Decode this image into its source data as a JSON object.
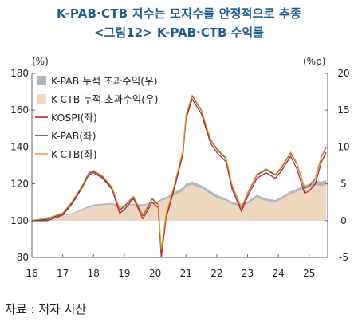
{
  "header": {
    "title_line1": "K-PAB·CTB 지수는 모지수를 안정적으로 추종",
    "title_line2": "<그림12> K-PAB·CTB 수익률"
  },
  "footer": {
    "source": "자료 : 저자 시산"
  },
  "colors": {
    "title": "#1f5f8c",
    "pab_excess": "#aeb3bd",
    "ctb_excess": "#f0d8c0",
    "kospi": "#c0202a",
    "pab": "#2f4a6e",
    "ctb": "#e2a530"
  },
  "chart_data": {
    "type": "line",
    "left_unit": "(%)",
    "right_unit": "(%p)",
    "x_tick_labels": [
      "16",
      "17",
      "18",
      "19",
      "20",
      "21",
      "22",
      "23",
      "24",
      "25"
    ],
    "y_left_ticks": [
      80,
      100,
      120,
      140,
      160,
      180
    ],
    "y_right_ticks": [
      -5,
      0,
      5,
      10,
      15,
      20
    ],
    "ylim_left": [
      80,
      180
    ],
    "ylim_right": [
      -5,
      20
    ],
    "xlim": [
      2016.0,
      2025.6
    ],
    "grid": false,
    "legend_position": "top-left",
    "legend": [
      {
        "label": "K-PAB 누적 초과수익(우)",
        "kind": "area",
        "color": "#aeb3bd"
      },
      {
        "label": "K-CTB 누적 초과수익(우)",
        "kind": "area",
        "color": "#f0d8c0"
      },
      {
        "label": "KOSPI(좌)",
        "kind": "line",
        "color": "#c0202a"
      },
      {
        "label": "K-PAB(좌)",
        "kind": "line",
        "color": "#2f4a6e"
      },
      {
        "label": "K-CTB(좌)",
        "kind": "line",
        "color": "#e2a530"
      }
    ],
    "x": [
      2016.0,
      2016.5,
      2017.0,
      2017.3,
      2017.6,
      2017.85,
      2018.0,
      2018.3,
      2018.6,
      2018.85,
      2019.0,
      2019.3,
      2019.6,
      2019.9,
      2020.1,
      2020.2,
      2020.35,
      2020.6,
      2020.9,
      2021.0,
      2021.2,
      2021.5,
      2021.8,
      2022.0,
      2022.3,
      2022.5,
      2022.8,
      2023.0,
      2023.3,
      2023.6,
      2023.9,
      2024.1,
      2024.4,
      2024.6,
      2024.85,
      2025.0,
      2025.2,
      2025.4,
      2025.55
    ],
    "series": [
      {
        "name": "KOSPI(좌)",
        "axis": "left",
        "values": [
          100,
          100,
          103,
          109,
          117,
          125,
          126,
          123,
          117,
          104,
          106,
          112,
          101,
          110,
          107,
          80,
          101,
          116,
          136,
          155,
          166,
          158,
          142,
          137,
          132,
          117,
          105,
          113,
          123,
          126,
          123,
          127,
          135,
          128,
          115,
          116,
          120,
          132,
          137
        ]
      },
      {
        "name": "K-PAB(좌)",
        "axis": "left",
        "values": [
          100,
          101,
          104,
          110,
          118,
          126,
          127,
          124,
          118,
          106,
          108,
          113,
          103,
          112,
          109,
          84,
          103,
          118,
          138,
          157,
          168,
          160,
          144,
          139,
          134,
          119,
          107,
          115,
          125,
          128,
          125,
          129,
          137,
          131,
          118,
          119,
          123,
          135,
          140
        ]
      },
      {
        "name": "K-CTB(좌)",
        "axis": "left",
        "values": [
          100,
          101,
          104,
          110,
          118,
          126,
          127,
          124,
          118,
          106,
          108,
          113,
          103,
          112,
          109,
          84,
          103,
          118,
          138,
          157,
          168,
          160,
          144,
          139,
          134,
          119,
          107,
          115,
          125,
          128,
          125,
          129,
          137,
          131,
          118,
          119,
          123,
          135,
          140
        ]
      },
      {
        "name": "K-PAB 누적 초과수익(우)",
        "axis": "right",
        "values": [
          0,
          0.5,
          0.8,
          1.0,
          1.5,
          2.0,
          2.2,
          2.3,
          2.4,
          2.0,
          2.1,
          2.3,
          2.2,
          2.5,
          2.6,
          3.0,
          3.2,
          3.8,
          4.5,
          5.0,
          5.3,
          4.8,
          4.0,
          3.5,
          3.0,
          2.5,
          2.3,
          2.6,
          3.5,
          3.0,
          2.8,
          3.2,
          4.0,
          4.3,
          4.8,
          5.0,
          5.4,
          5.3,
          5.5
        ]
      },
      {
        "name": "K-CTB 누적 초과수익(우)",
        "axis": "right",
        "values": [
          0,
          0.4,
          0.7,
          0.9,
          1.3,
          1.8,
          2.0,
          2.1,
          2.2,
          1.8,
          1.9,
          2.1,
          2.0,
          2.3,
          2.4,
          2.7,
          2.9,
          3.4,
          4.0,
          4.6,
          4.9,
          4.4,
          3.6,
          3.1,
          2.7,
          2.2,
          2.0,
          2.3,
          3.1,
          2.7,
          2.5,
          2.9,
          3.6,
          3.9,
          4.3,
          4.5,
          4.8,
          4.7,
          4.9
        ]
      }
    ]
  }
}
